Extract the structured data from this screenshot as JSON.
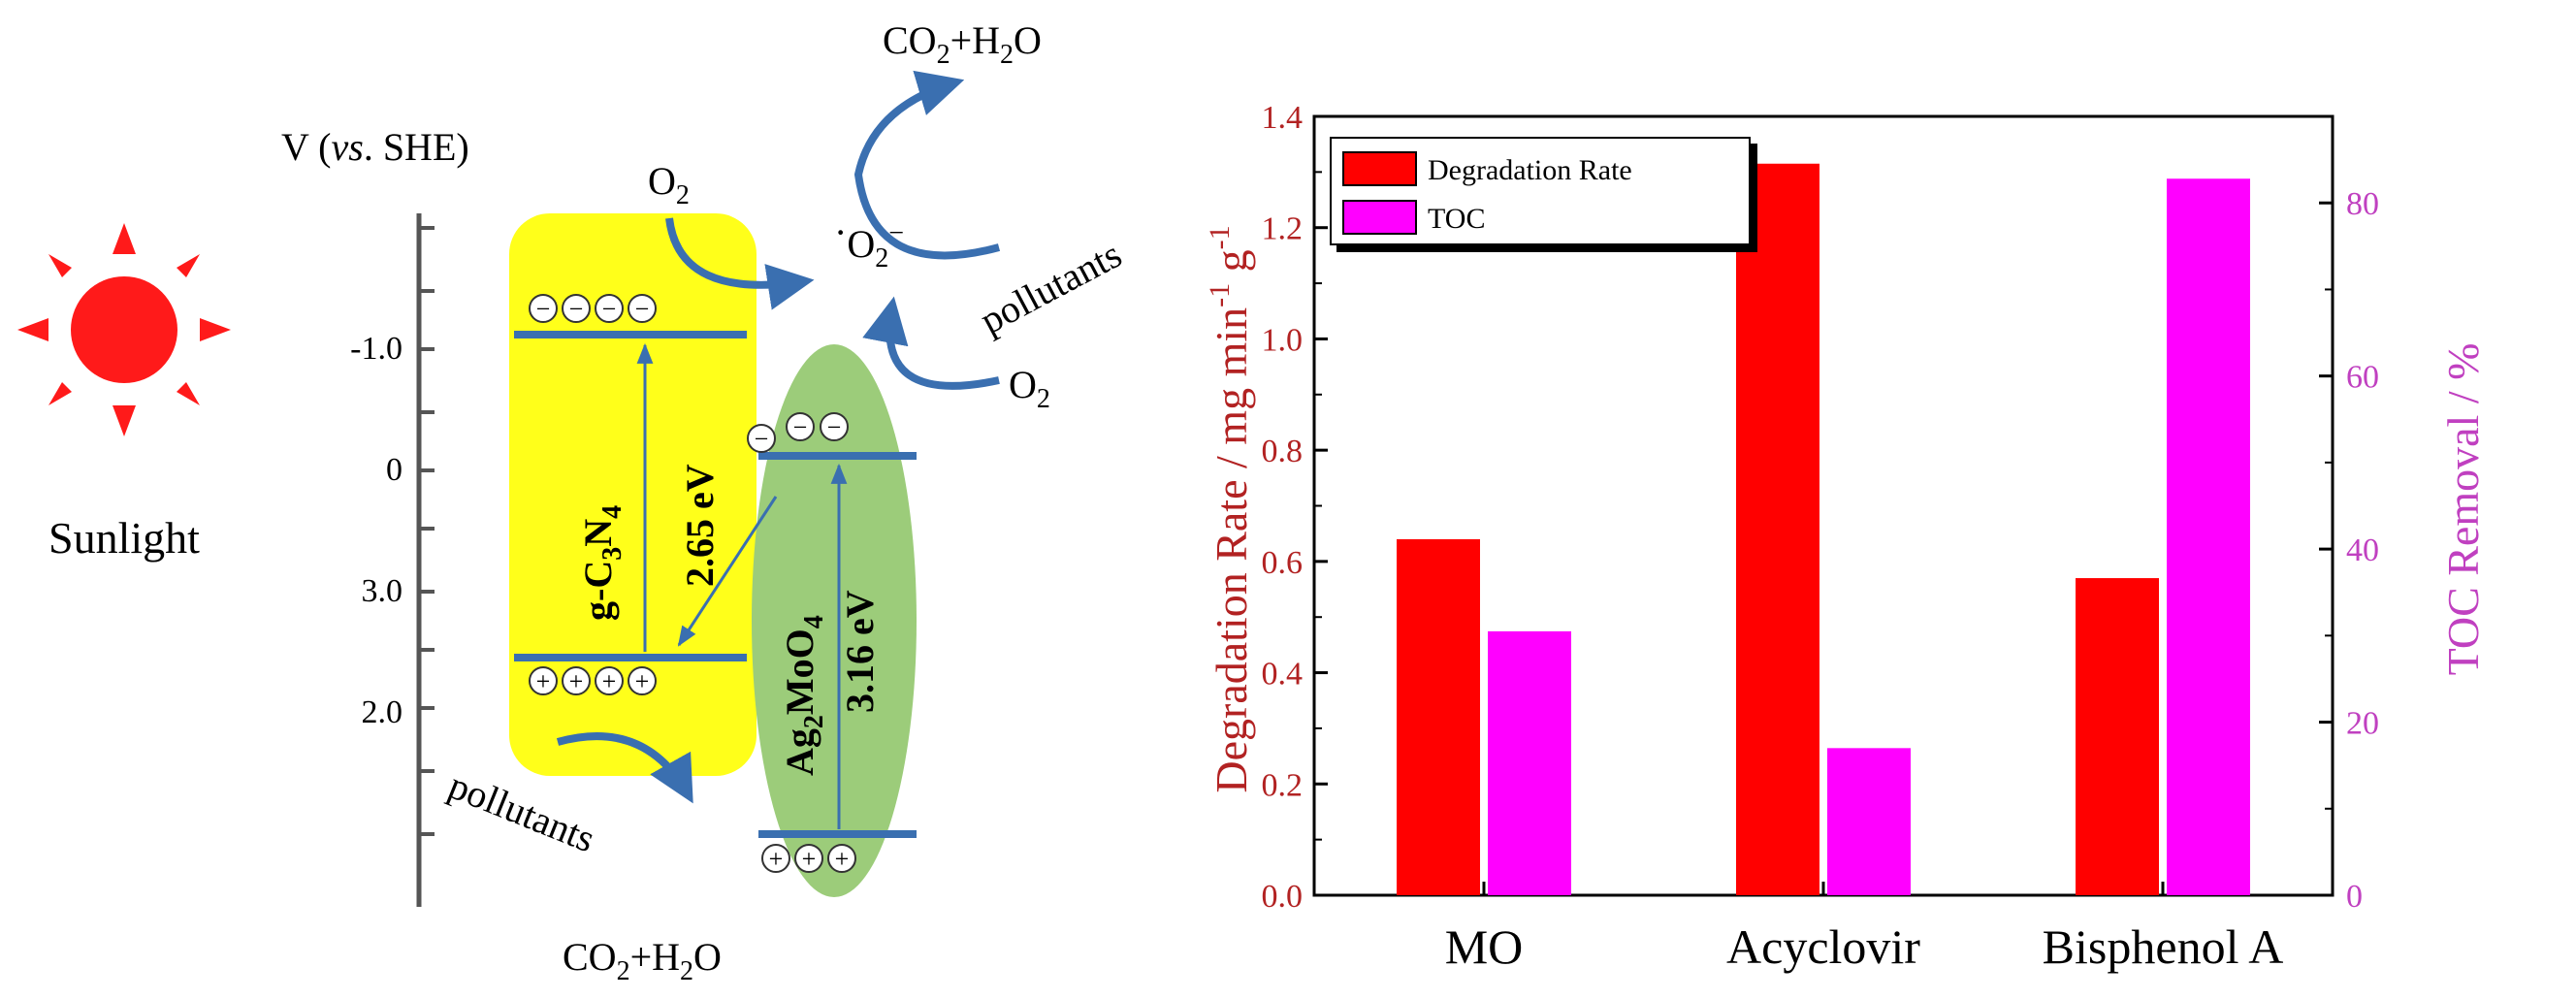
{
  "schematic": {
    "sunlight_label": "Sunlight",
    "sun_color": "#ff1a1a",
    "axis": {
      "title_prefix": "V (",
      "title_italic": "vs",
      "title_suffix": ". SHE)",
      "tick_labels": [
        "-1.0",
        "0",
        "3.0",
        "2.0"
      ]
    },
    "gcn": {
      "fill": "#ffff1a",
      "name_main": "g-C",
      "name_sub1": "3",
      "name_mid": "N",
      "name_sub2": "4",
      "gap": "2.65 eV",
      "electron_count": 4,
      "hole_count": 4
    },
    "agmo": {
      "fill": "#9ccc7a",
      "name_main": "Ag",
      "name_sub1": "2",
      "name_mid": "MoO",
      "name_sub2": "4",
      "gap": "3.16 eV",
      "electron_count": 3,
      "hole_count": 3
    },
    "electron_symbol": "−",
    "hole_symbol": "+",
    "o2_main": "O",
    "o2_sub": "2",
    "superoxide_dot": "·",
    "superoxide_main": "O",
    "superoxide_sub": "2",
    "superoxide_sup": "−",
    "pollutants": "pollutants",
    "co2_main": "CO",
    "co2_sub": "2",
    "h2o_plus": "+H",
    "h2o_sub": "2",
    "h2o_o": "O",
    "arrow_color": "#3a6fb0"
  },
  "chart_data": {
    "type": "bar",
    "categories": [
      "MO",
      "Acyclovir",
      "Bisphenol A"
    ],
    "series": [
      {
        "name": "Degradation Rate",
        "axis": "left",
        "color": "#ff0000",
        "values": [
          0.64,
          1.315,
          0.57
        ]
      },
      {
        "name": "TOC",
        "axis": "right",
        "color": "#ff00ff",
        "values": [
          30.5,
          17,
          82.8
        ]
      }
    ],
    "ylabel_left_main": "Degradation Rate / mg min",
    "ylabel_left_sup": "-1",
    "ylabel_left_tail": " g",
    "ylabel_left_sup2": "-1",
    "ylabel_right": "TOC Removal / %",
    "left_axis_color": "#b22222",
    "right_axis_color": "#c040c0",
    "ylim_left": [
      0,
      1.4
    ],
    "ylim_right": [
      0,
      90
    ],
    "yticks_left": [
      "0.0",
      "0.2",
      "0.4",
      "0.6",
      "0.8",
      "1.0",
      "1.2",
      "1.4"
    ],
    "yticks_right": [
      "0",
      "20",
      "40",
      "60",
      "80"
    ],
    "legend": [
      "Degradation Rate",
      "TOC"
    ],
    "legend_position": "top-left",
    "grid": false
  }
}
